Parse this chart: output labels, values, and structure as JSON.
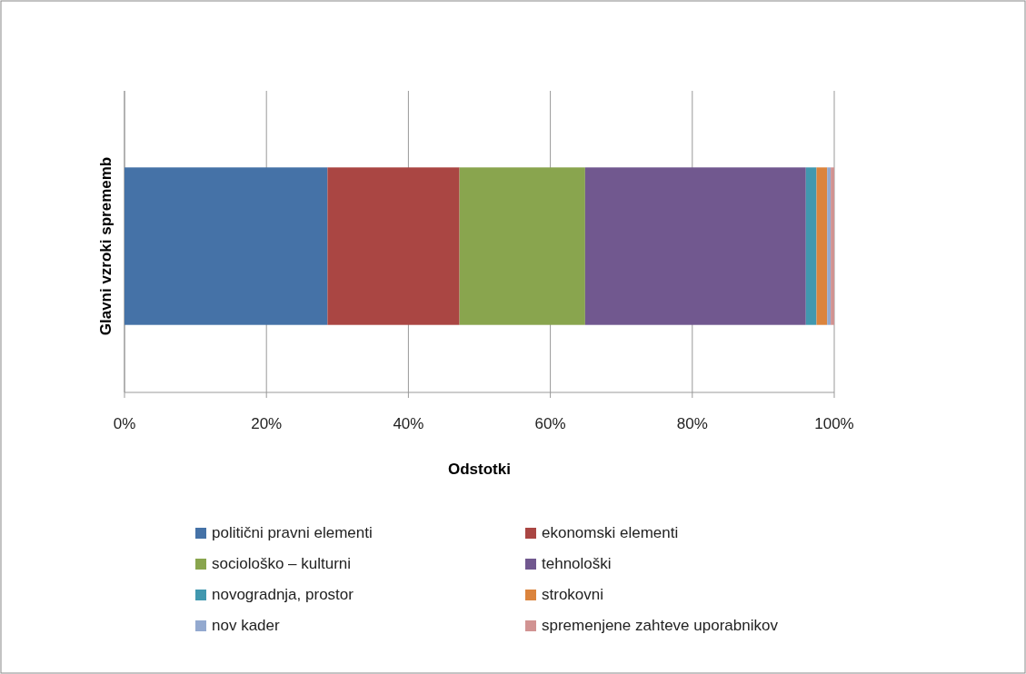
{
  "chart_data": {
    "type": "bar",
    "orientation": "horizontal",
    "stacked": true,
    "categories": [
      null
    ],
    "xlabel": "Odstotki",
    "ylabel": "Glavni vzroki sprememb",
    "xlim": [
      0,
      100
    ],
    "xticks": [
      {
        "value": 0,
        "label": "0%"
      },
      {
        "value": 20,
        "label": "20%"
      },
      {
        "value": 40,
        "label": "40%"
      },
      {
        "value": 60,
        "label": "60%"
      },
      {
        "value": 80,
        "label": "80%"
      },
      {
        "value": 100,
        "label": "100%"
      }
    ],
    "grid": "x",
    "legend": "bottom",
    "series": [
      {
        "name": "politični pravni elementi",
        "color": "#4572a7",
        "values": [
          28.6
        ]
      },
      {
        "name": "ekonomski elementi",
        "color": "#aa4643",
        "values": [
          18.6
        ]
      },
      {
        "name": "sociološko – kulturni",
        "color": "#89a54e",
        "values": [
          17.7
        ]
      },
      {
        "name": "tehnološki",
        "color": "#71588f",
        "values": [
          31.1
        ]
      },
      {
        "name": "novogradnja, prostor",
        "color": "#4198af",
        "values": [
          1.5
        ]
      },
      {
        "name": "strokovni",
        "color": "#db843d",
        "values": [
          1.5
        ]
      },
      {
        "name": "nov kader",
        "color": "#93a9cf",
        "values": [
          0.5
        ]
      },
      {
        "name": "spremenjene zahteve uporabnikov",
        "color": "#d19392",
        "values": [
          0.5
        ]
      }
    ]
  }
}
